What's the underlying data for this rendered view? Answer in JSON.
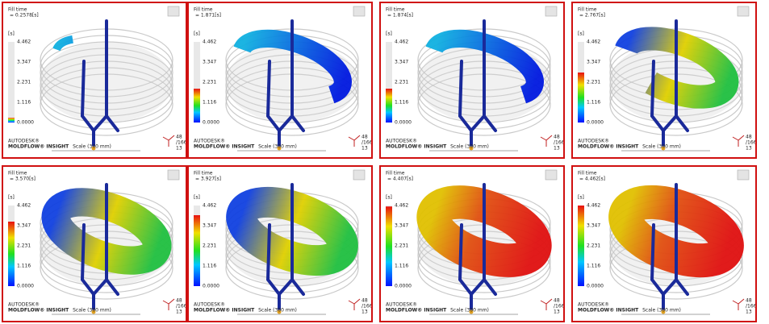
{
  "title": "Fill time",
  "panels": [
    {
      "time": "= 0.2578[s]"
    },
    {
      "time": "= 1.871[s]"
    },
    {
      "time": "= 1.874[s]"
    },
    {
      "time": "= 2.767[s]"
    },
    {
      "time": "= 3.570[s]"
    },
    {
      "time": "= 3.927[s]"
    },
    {
      "time": "= 4.407[s]"
    },
    {
      "time": "= 4.462[s]"
    }
  ],
  "legend": {
    "unit": "[s]",
    "ticks": [
      "4.462",
      "3.347",
      "2.231",
      "1.116",
      "0.0000"
    ]
  },
  "brand": "AUTODESK®",
  "product": "MOLDFLOW® INSIGHT",
  "scale": "Scale (300 mm)",
  "triad": [
    "48",
    "/166",
    "13"
  ]
}
